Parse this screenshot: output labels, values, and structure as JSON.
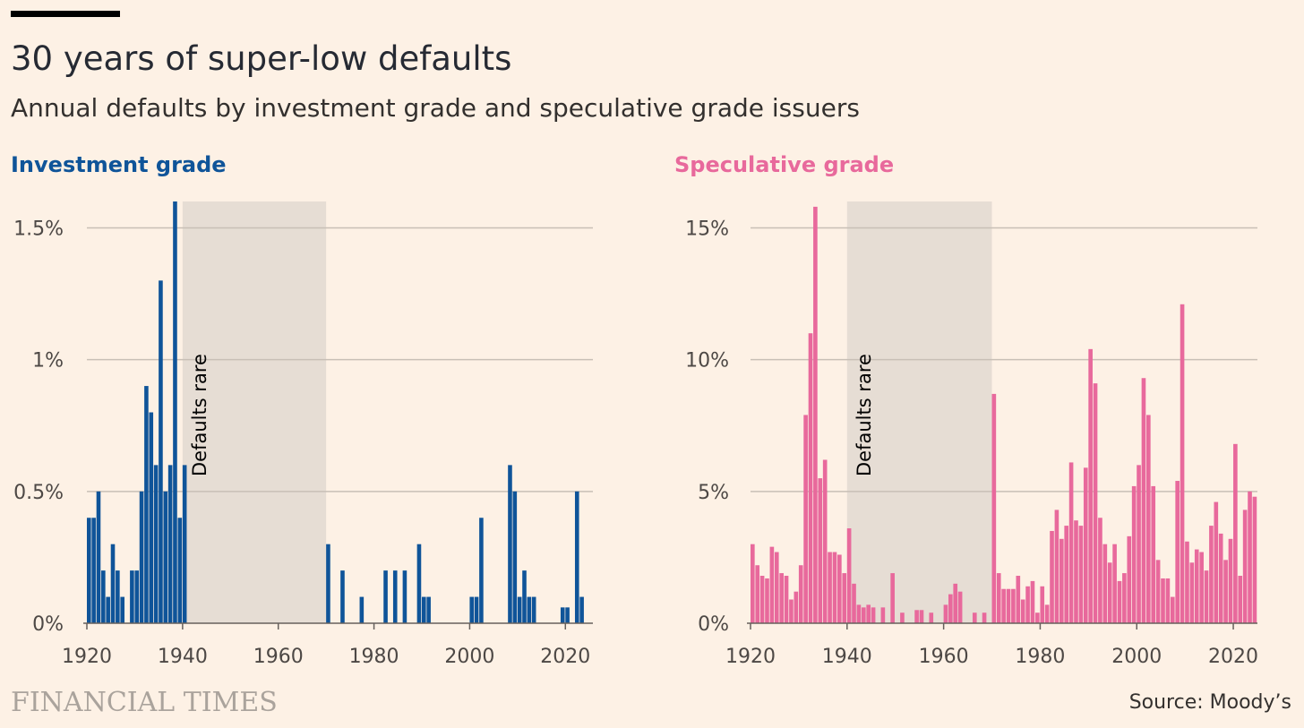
{
  "header": {
    "title": "30 years of super-low defaults",
    "subtitle": "Annual defaults by investment grade and speculative grade issuers"
  },
  "footer": {
    "logo": "FINANCIAL TIMES",
    "source": "Source: Moody’s"
  },
  "colors": {
    "background": "#fdf1e5",
    "investment_grade": "#0f5499",
    "speculative_grade": "#e8699c",
    "shade": "#e6ddd4",
    "grid": "#c8bfb6"
  },
  "chart_data": [
    {
      "type": "bar",
      "title": "Investment grade",
      "xlim": [
        1920,
        2024
      ],
      "ylim": [
        0,
        1.6
      ],
      "x_ticks": [
        1920,
        1940,
        1960,
        1980,
        2000,
        2020
      ],
      "y_ticks": [
        0,
        0.5,
        1,
        1.5
      ],
      "y_tick_labels": [
        "0%",
        "0.5%",
        "1%",
        "1.5%"
      ],
      "grid": true,
      "annotation": {
        "label": "Defaults rare",
        "x_start": 1940,
        "x_end": 1970
      },
      "x": [
        1920,
        1921,
        1922,
        1923,
        1924,
        1925,
        1926,
        1927,
        1928,
        1929,
        1930,
        1931,
        1932,
        1933,
        1934,
        1935,
        1936,
        1937,
        1938,
        1939,
        1940,
        1970,
        1973,
        1977,
        1982,
        1984,
        1986,
        1989,
        1990,
        1991,
        2000,
        2001,
        2002,
        2008,
        2009,
        2010,
        2011,
        2012,
        2013,
        2019,
        2020,
        2022,
        2023
      ],
      "values": [
        0.4,
        0.4,
        0.5,
        0.2,
        0.1,
        0.3,
        0.2,
        0.1,
        0,
        0.2,
        0.2,
        0.5,
        0.9,
        0.8,
        0.6,
        1.3,
        0.5,
        0.6,
        1.6,
        0.4,
        0.6,
        0.3,
        0.2,
        0.1,
        0.2,
        0.2,
        0.2,
        0.3,
        0.1,
        0.1,
        0.1,
        0.1,
        0.4,
        0.6,
        0.5,
        0.1,
        0.2,
        0.1,
        0.1,
        0.06,
        0.06,
        0.5,
        0.1
      ]
    },
    {
      "type": "bar",
      "title": "Speculative grade",
      "xlim": [
        1920,
        2024
      ],
      "ylim": [
        0,
        16
      ],
      "x_ticks": [
        1920,
        1940,
        1960,
        1980,
        2000,
        2020
      ],
      "y_ticks": [
        0,
        5,
        10,
        15
      ],
      "y_tick_labels": [
        "0%",
        "5%",
        "10%",
        "15%"
      ],
      "grid": true,
      "annotation": {
        "label": "Defaults rare",
        "x_start": 1940,
        "x_end": 1970
      },
      "x": [
        1920,
        1921,
        1922,
        1923,
        1924,
        1925,
        1926,
        1927,
        1928,
        1929,
        1930,
        1931,
        1932,
        1933,
        1934,
        1935,
        1936,
        1937,
        1938,
        1939,
        1940,
        1941,
        1942,
        1943,
        1944,
        1945,
        1946,
        1947,
        1948,
        1949,
        1950,
        1951,
        1952,
        1953,
        1954,
        1955,
        1956,
        1957,
        1958,
        1959,
        1960,
        1961,
        1962,
        1963,
        1964,
        1965,
        1966,
        1967,
        1968,
        1969,
        1970,
        1971,
        1972,
        1973,
        1974,
        1975,
        1976,
        1977,
        1978,
        1979,
        1980,
        1981,
        1982,
        1983,
        1984,
        1985,
        1986,
        1987,
        1988,
        1989,
        1990,
        1991,
        1992,
        1993,
        1994,
        1995,
        1996,
        1997,
        1998,
        1999,
        2000,
        2001,
        2002,
        2003,
        2004,
        2005,
        2006,
        2007,
        2008,
        2009,
        2010,
        2011,
        2012,
        2013,
        2014,
        2015,
        2016,
        2017,
        2018,
        2019,
        2020,
        2021,
        2022,
        2023,
        2024
      ],
      "values": [
        3.0,
        2.2,
        1.8,
        1.7,
        2.9,
        2.7,
        1.9,
        1.8,
        0.9,
        1.2,
        2.2,
        7.9,
        11.0,
        15.8,
        5.5,
        6.2,
        2.7,
        2.7,
        2.6,
        1.9,
        3.6,
        1.5,
        0.7,
        0.6,
        0.7,
        0.6,
        0,
        0.6,
        0,
        1.9,
        0,
        0.4,
        0,
        0,
        0.5,
        0.5,
        0,
        0.4,
        0,
        0,
        0.7,
        1.1,
        1.5,
        1.2,
        0,
        0,
        0.4,
        0,
        0.4,
        0,
        8.7,
        1.9,
        1.3,
        1.3,
        1.3,
        1.8,
        0.9,
        1.4,
        1.6,
        0.4,
        1.4,
        0.7,
        3.5,
        4.3,
        3.2,
        3.7,
        6.1,
        3.9,
        3.7,
        5.9,
        10.4,
        9.1,
        4.0,
        3.0,
        2.3,
        3.0,
        1.6,
        1.9,
        3.3,
        5.2,
        6.0,
        9.3,
        7.9,
        5.2,
        2.4,
        1.7,
        1.7,
        1.0,
        5.4,
        12.1,
        3.1,
        2.3,
        2.8,
        2.7,
        2.0,
        3.7,
        4.6,
        3.4,
        2.4,
        3.2,
        6.8,
        1.8,
        4.3,
        5.0,
        4.8
      ]
    }
  ]
}
